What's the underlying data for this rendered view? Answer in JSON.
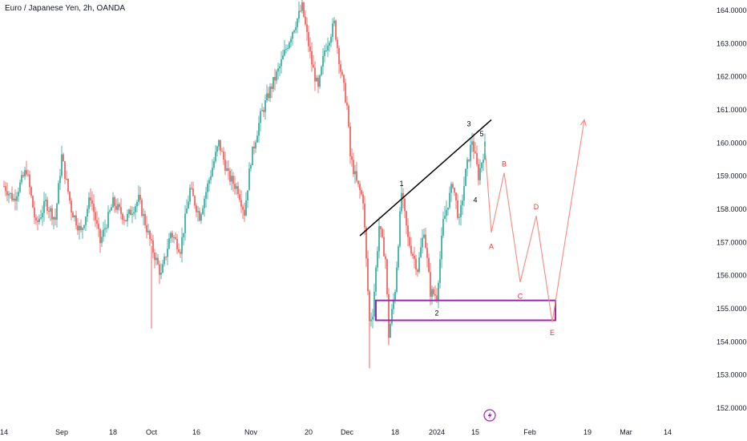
{
  "header": {
    "symbol_title": "Euro / Japanese Yen, 2h, OANDA"
  },
  "colors": {
    "up": "#26a69a",
    "down": "#ef5350",
    "projection": "#f28b82",
    "box": "#9c27b0",
    "trendline": "#000000",
    "wave_text": "#000000",
    "proj_text": "#e53935"
  },
  "icons": {
    "flash": "flash-icon"
  },
  "chart_data": {
    "type": "candlestick",
    "title": "Euro / Japanese Yen, 2h, OANDA",
    "ylim": [
      151.7,
      164.3
    ],
    "y_ticks": [
      "164.00000",
      "163.00000",
      "162.00000",
      "161.00000",
      "160.00000",
      "159.00000",
      "158.00000",
      "157.00000",
      "156.00000",
      "155.00000",
      "154.00000",
      "153.00000",
      "152.00000"
    ],
    "y_tick_values": [
      164,
      163,
      162,
      161,
      160,
      159,
      158,
      157,
      156,
      155,
      154,
      153,
      152
    ],
    "x_ticks": [
      {
        "label": "14",
        "t": 0
      },
      {
        "label": "Sep",
        "t": 18
      },
      {
        "label": "18",
        "t": 34
      },
      {
        "label": "Oct",
        "t": 46
      },
      {
        "label": "16",
        "t": 60
      },
      {
        "label": "Nov",
        "t": 77
      },
      {
        "label": "20",
        "t": 95
      },
      {
        "label": "Dec",
        "t": 107
      },
      {
        "label": "18",
        "t": 122
      },
      {
        "label": "2024",
        "t": 135
      },
      {
        "label": "15",
        "t": 147
      },
      {
        "label": "Feb",
        "t": 164
      },
      {
        "label": "19",
        "t": 182
      },
      {
        "label": "Mar",
        "t": 194
      },
      {
        "label": "14",
        "t": 207
      }
    ],
    "xlim": [
      0,
      208
    ],
    "price_path": [
      {
        "t": 0,
        "p": 158.7
      },
      {
        "t": 3,
        "p": 158.3
      },
      {
        "t": 7,
        "p": 159.2
      },
      {
        "t": 10,
        "p": 157.5
      },
      {
        "t": 13,
        "p": 158.2
      },
      {
        "t": 16,
        "p": 157.7
      },
      {
        "t": 18,
        "p": 159.6
      },
      {
        "t": 21,
        "p": 158.0
      },
      {
        "t": 24,
        "p": 157.3
      },
      {
        "t": 27,
        "p": 158.4
      },
      {
        "t": 30,
        "p": 157.0
      },
      {
        "t": 34,
        "p": 158.2
      },
      {
        "t": 38,
        "p": 157.7
      },
      {
        "t": 42,
        "p": 158.3
      },
      {
        "t": 46,
        "p": 156.9
      },
      {
        "t": 49,
        "p": 156.0
      },
      {
        "t": 52,
        "p": 157.3
      },
      {
        "t": 55,
        "p": 156.8
      },
      {
        "t": 58,
        "p": 158.6
      },
      {
        "t": 61,
        "p": 157.8
      },
      {
        "t": 64,
        "p": 158.9
      },
      {
        "t": 67,
        "p": 160.0
      },
      {
        "t": 70,
        "p": 159.0
      },
      {
        "t": 73,
        "p": 158.6
      },
      {
        "t": 75,
        "p": 157.9
      },
      {
        "t": 77,
        "p": 159.5
      },
      {
        "t": 80,
        "p": 160.8
      },
      {
        "t": 83,
        "p": 161.6
      },
      {
        "t": 86,
        "p": 162.3
      },
      {
        "t": 90,
        "p": 163.4
      },
      {
        "t": 93,
        "p": 164.1
      },
      {
        "t": 96,
        "p": 162.4
      },
      {
        "t": 98,
        "p": 161.6
      },
      {
        "t": 100,
        "p": 162.8
      },
      {
        "t": 103,
        "p": 163.6
      },
      {
        "t": 105,
        "p": 162.2
      },
      {
        "t": 107,
        "p": 161.1
      },
      {
        "t": 108,
        "p": 159.6
      },
      {
        "t": 110,
        "p": 158.8
      },
      {
        "t": 112,
        "p": 158.3
      },
      {
        "t": 114,
        "p": 154.6
      },
      {
        "t": 115,
        "p": 154.9
      },
      {
        "t": 117,
        "p": 157.5
      },
      {
        "t": 119,
        "p": 156.5
      },
      {
        "t": 120,
        "p": 154.2
      },
      {
        "t": 122,
        "p": 155.6
      },
      {
        "t": 124,
        "p": 158.5
      },
      {
        "t": 126,
        "p": 157.1
      },
      {
        "t": 129,
        "p": 156.2
      },
      {
        "t": 131,
        "p": 157.4
      },
      {
        "t": 133,
        "p": 155.5
      },
      {
        "t": 135,
        "p": 155.4
      },
      {
        "t": 137,
        "p": 157.6
      },
      {
        "t": 140,
        "p": 158.8
      },
      {
        "t": 142,
        "p": 157.6
      },
      {
        "t": 144,
        "p": 159.1
      },
      {
        "t": 146,
        "p": 160.1
      },
      {
        "t": 148,
        "p": 159.0
      },
      {
        "t": 150,
        "p": 159.9
      }
    ],
    "wicks": [
      {
        "t": 46,
        "low": 154.4
      },
      {
        "t": 114,
        "low": 153.2
      },
      {
        "t": 120,
        "low": 153.9
      },
      {
        "t": 93,
        "high": 164.3
      }
    ],
    "trendline": {
      "from": {
        "t": 111,
        "p": 157.2
      },
      "to": {
        "t": 152,
        "p": 160.7
      }
    },
    "wave_labels": [
      {
        "label": "1",
        "t": 124,
        "p": 158.7
      },
      {
        "label": "2",
        "t": 135,
        "p": 154.8
      },
      {
        "label": "3",
        "t": 145,
        "p": 160.5
      },
      {
        "label": "4",
        "t": 147,
        "p": 158.2
      },
      {
        "label": "5",
        "t": 149,
        "p": 160.2
      }
    ],
    "projection": [
      {
        "t": 150,
        "p": 159.9
      },
      {
        "t": 152,
        "p": 157.3
      },
      {
        "t": 156,
        "p": 159.1
      },
      {
        "t": 161,
        "p": 155.8
      },
      {
        "t": 166,
        "p": 157.8
      },
      {
        "t": 171,
        "p": 154.6
      },
      {
        "t": 181,
        "p": 160.7
      }
    ],
    "projection_labels": [
      {
        "label": "A",
        "t": 152,
        "p": 156.8
      },
      {
        "label": "B",
        "t": 156,
        "p": 159.3
      },
      {
        "label": "C",
        "t": 161,
        "p": 155.3
      },
      {
        "label": "D",
        "t": 166,
        "p": 158.0
      },
      {
        "label": "E",
        "t": 171,
        "p": 154.2
      }
    ],
    "zone_box": {
      "t_start": 116,
      "t_end": 172,
      "p_low": 154.65,
      "p_high": 155.25
    }
  }
}
